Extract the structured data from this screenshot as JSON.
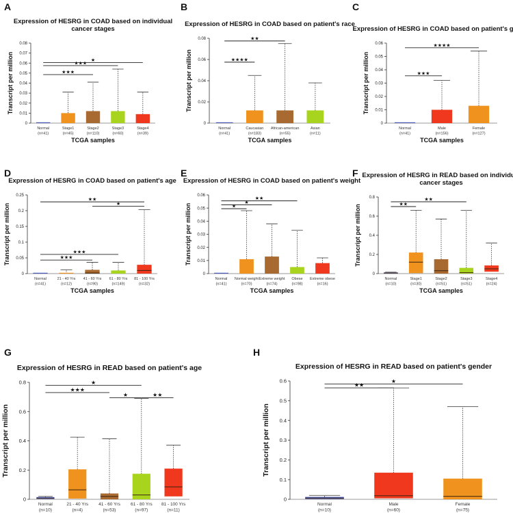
{
  "chart_data": [
    {
      "panel": "A",
      "type": "box",
      "title": [
        "Expression of HESRG in COAD based on individual",
        "cancer stages"
      ],
      "xlabel": "TCGA samples",
      "ylabel": "Transcript per million",
      "ylim": [
        0,
        0.08
      ],
      "yticks": [
        "0",
        "0.01",
        "0.02",
        "0.03",
        "0.04",
        "0.05",
        "0.06",
        "0.07",
        "0.08"
      ],
      "categories": [
        "Normal",
        "Stage1",
        "Stage2",
        "Stage3",
        "Stage4"
      ],
      "ns": [
        "(n=41)",
        "(n=45)",
        "(n=110)",
        "(n=60)",
        "(n=39)"
      ],
      "colors": [
        "#4a58b8",
        "#f0921e",
        "#a86a30",
        "#a8d41e",
        "#f0381e"
      ],
      "boxes": [
        {
          "min": 0,
          "q1": 0,
          "median": 0,
          "q3": 0,
          "max": 0
        },
        {
          "min": 0,
          "q1": 0,
          "median": 0,
          "q3": 0.01,
          "max": 0.031
        },
        {
          "min": 0,
          "q1": 0,
          "median": 0,
          "q3": 0.012,
          "max": 0.041
        },
        {
          "min": 0,
          "q1": 0,
          "median": 0,
          "q3": 0.012,
          "max": 0.054
        },
        {
          "min": 0,
          "q1": 0,
          "median": 0,
          "q3": 0.009,
          "max": 0.031
        }
      ],
      "sig": [
        {
          "from": 0,
          "to": 4,
          "y": 0.0605,
          "label": "★"
        },
        {
          "from": 0,
          "to": 3,
          "y": 0.0575,
          "label": "★★★"
        },
        {
          "from": 0,
          "to": 2,
          "y": 0.0485,
          "label": "★★★"
        }
      ]
    },
    {
      "panel": "B",
      "type": "box",
      "title": [
        "Expression of HESRG in COAD based on patient's race"
      ],
      "xlabel": "TCGA samples",
      "ylabel": "Transcript per million",
      "ylim": [
        0,
        0.08
      ],
      "yticks": [
        "0",
        "0.02",
        "0.04",
        "0.06",
        "0.08"
      ],
      "categories": [
        "Normal",
        "Caucasian",
        "African-american",
        "Asian"
      ],
      "ns": [
        "(n=41)",
        "(n=183)",
        "(n=55)",
        "(n=11)"
      ],
      "colors": [
        "#4a58b8",
        "#f0921e",
        "#a86a30",
        "#a8d41e"
      ],
      "boxes": [
        {
          "min": 0,
          "q1": 0,
          "median": 0,
          "q3": 0,
          "max": 0
        },
        {
          "min": 0,
          "q1": 0,
          "median": 0,
          "q3": 0.012,
          "max": 0.045
        },
        {
          "min": 0,
          "q1": 0,
          "median": 0,
          "q3": 0.012,
          "max": 0.075
        },
        {
          "min": 0,
          "q1": 0,
          "median": 0,
          "q3": 0.012,
          "max": 0.038
        }
      ],
      "sig": [
        {
          "from": 0,
          "to": 2,
          "y": 0.0775,
          "label": "★★"
        },
        {
          "from": 0,
          "to": 1,
          "y": 0.0575,
          "label": "★★★★"
        }
      ]
    },
    {
      "panel": "C",
      "type": "box",
      "title": [
        "Expression of HESRG in COAD based on patient's gender"
      ],
      "xlabel": "TCGA samples",
      "ylabel": "Transcript per million",
      "ylim": [
        0,
        0.06
      ],
      "yticks": [
        "0",
        "0.01",
        "0.02",
        "0.03",
        "0.04",
        "0.05",
        "0.06"
      ],
      "categories": [
        "Normal",
        "Male",
        "Female"
      ],
      "ns": [
        "(n=41)",
        "(n=156)",
        "(n=127)"
      ],
      "colors": [
        "#4a58b8",
        "#f0381e",
        "#f0921e"
      ],
      "boxes": [
        {
          "min": 0,
          "q1": 0,
          "median": 0,
          "q3": 0,
          "max": 0
        },
        {
          "min": 0,
          "q1": 0,
          "median": 0,
          "q3": 0.01,
          "max": 0.032
        },
        {
          "min": 0,
          "q1": 0,
          "median": 0,
          "q3": 0.013,
          "max": 0.054
        }
      ],
      "sig": [
        {
          "from": 0,
          "to": 2,
          "y": 0.0565,
          "label": "★★★★"
        },
        {
          "from": 0,
          "to": 1,
          "y": 0.0355,
          "label": "★★★"
        }
      ]
    },
    {
      "panel": "D",
      "type": "box",
      "title": [
        "Expression of HESRG in COAD based on patient's age"
      ],
      "xlabel": "TCGA samples",
      "ylabel": "Transcript per million",
      "ylim": [
        0,
        0.25
      ],
      "yticks": [
        "0",
        "0.05",
        "0.1",
        "0.15",
        "0.2",
        "0.25"
      ],
      "categories": [
        "Normal",
        "21 - 40 Yrs",
        "41 - 60 Yrs",
        "61 - 80 Yrs",
        "81 - 100 Yrs"
      ],
      "ns": [
        "(n=41)",
        "(n=12)",
        "(n=90)",
        "(n=149)",
        "(n=32)"
      ],
      "colors": [
        "#4a58b8",
        "#f0921e",
        "#a86a30",
        "#a8d41e",
        "#f0381e"
      ],
      "boxes": [
        {
          "min": 0,
          "q1": 0,
          "median": 0,
          "q3": 0,
          "max": 0
        },
        {
          "min": 0,
          "q1": 0,
          "median": 0,
          "q3": 0,
          "max": 0.012
        },
        {
          "min": 0,
          "q1": 0,
          "median": 0.002,
          "q3": 0.012,
          "max": 0.036
        },
        {
          "min": 0,
          "q1": 0,
          "median": 0,
          "q3": 0.01,
          "max": 0.036
        },
        {
          "min": 0,
          "q1": 0,
          "median": 0.01,
          "q3": 0.028,
          "max": 0.203
        }
      ],
      "sig": [
        {
          "from": 0,
          "to": 4,
          "y": 0.228,
          "label": "★★"
        },
        {
          "from": 2,
          "to": 4,
          "y": 0.214,
          "label": "★"
        },
        {
          "from": 0,
          "to": 3,
          "y": 0.061,
          "label": "★★★"
        },
        {
          "from": 0,
          "to": 2,
          "y": 0.043,
          "label": "★★★"
        }
      ]
    },
    {
      "panel": "E",
      "type": "box",
      "title": [
        "Expression of HESRG in COAD based on patient's weight"
      ],
      "xlabel": "TCGA samples",
      "ylabel": "Transcript per million",
      "ylim": [
        0,
        0.06
      ],
      "yticks": [
        "0",
        "0.01",
        "0.02",
        "0.03",
        "0.04",
        "0.05",
        "0.06"
      ],
      "categories": [
        "Normal",
        "Normal weight",
        "Extreme weight",
        "Obese",
        "Extreme obese"
      ],
      "ns": [
        "(n=41)",
        "(n=70)",
        "(n=74)",
        "(n=98)",
        "(n=16)"
      ],
      "colors": [
        "#4a58b8",
        "#f0921e",
        "#a86a30",
        "#a8d41e",
        "#f0381e"
      ],
      "boxes": [
        {
          "min": 0,
          "q1": 0,
          "median": 0,
          "q3": 0,
          "max": 0
        },
        {
          "min": 0,
          "q1": 0,
          "median": 0,
          "q3": 0.011,
          "max": 0.048
        },
        {
          "min": 0,
          "q1": 0,
          "median": 0,
          "q3": 0.013,
          "max": 0.038
        },
        {
          "min": 0,
          "q1": 0,
          "median": 0,
          "q3": 0.005,
          "max": 0.033
        },
        {
          "min": 0,
          "q1": 0,
          "median": 0,
          "q3": 0.008,
          "max": 0.012
        }
      ],
      "sig": [
        {
          "from": 0,
          "to": 3,
          "y": 0.0555,
          "label": "★★"
        },
        {
          "from": 0,
          "to": 2,
          "y": 0.0525,
          "label": "★"
        },
        {
          "from": 0,
          "to": 1,
          "y": 0.0495,
          "label": "★"
        }
      ]
    },
    {
      "panel": "F",
      "type": "box",
      "title": [
        "Expression of HESRG in READ based on individual",
        "cancer stages"
      ],
      "xlabel": "TCGA samples",
      "ylabel": "Transcript per million",
      "ylim": [
        0,
        0.8
      ],
      "yticks": [
        "0",
        "0.2",
        "0.4",
        "0.6",
        "0.8"
      ],
      "categories": [
        "Normal",
        "Stage1",
        "Stage2",
        "Stage3",
        "Stage4"
      ],
      "ns": [
        "(n=10)",
        "(n=30)",
        "(n=51)",
        "(n=51)",
        "(n=24)"
      ],
      "colors": [
        "#4a58b8",
        "#f0921e",
        "#a86a30",
        "#a8d41e",
        "#f0381e"
      ],
      "boxes": [
        {
          "min": 0,
          "q1": 0.002,
          "median": 0.006,
          "q3": 0.012,
          "max": 0.015
        },
        {
          "min": 0,
          "q1": 0.005,
          "median": 0.12,
          "q3": 0.22,
          "max": 0.66
        },
        {
          "min": 0,
          "q1": 0,
          "median": 0.03,
          "q3": 0.15,
          "max": 0.57
        },
        {
          "min": 0,
          "q1": 0,
          "median": 0.01,
          "q3": 0.06,
          "max": 0.66
        },
        {
          "min": 0,
          "q1": 0.02,
          "median": 0.05,
          "q3": 0.085,
          "max": 0.32
        }
      ],
      "sig": [
        {
          "from": 0,
          "to": 3,
          "y": 0.75,
          "label": "★★"
        },
        {
          "from": 0,
          "to": 1,
          "y": 0.7,
          "label": "★★"
        }
      ]
    },
    {
      "panel": "G",
      "type": "box",
      "title": [
        "Expression of HESRG in READ based on patient's age"
      ],
      "xlabel": "TCGA samples",
      "ylabel": "Transcript per million",
      "ylim": [
        0,
        0.8
      ],
      "yticks": [
        "0",
        "0.2",
        "0.4",
        "0.6",
        "0.8"
      ],
      "categories": [
        "Normal",
        "21 - 40 Yrs",
        "41 - 60 Yrs",
        "61 - 80 Yrs",
        "81 - 100 Yrs"
      ],
      "ns": [
        "(n=10)",
        "(n=4)",
        "(n=53)",
        "(n=97)",
        "(n=11)"
      ],
      "colors": [
        "#4a58b8",
        "#f0921e",
        "#a86a30",
        "#a8d41e",
        "#f0381e"
      ],
      "boxes": [
        {
          "min": 0,
          "q1": 0.003,
          "median": 0.008,
          "q3": 0.015,
          "max": 0.02
        },
        {
          "min": 0,
          "q1": 0.005,
          "median": 0.065,
          "q3": 0.205,
          "max": 0.425
        },
        {
          "min": 0,
          "q1": 0,
          "median": 0.02,
          "q3": 0.04,
          "max": 0.415
        },
        {
          "min": 0,
          "q1": 0,
          "median": 0.03,
          "q3": 0.175,
          "max": 0.69
        },
        {
          "min": 0,
          "q1": 0.02,
          "median": 0.085,
          "q3": 0.21,
          "max": 0.37
        }
      ],
      "sig": [
        {
          "from": 0,
          "to": 3,
          "y": 0.78,
          "label": "★"
        },
        {
          "from": 0,
          "to": 2,
          "y": 0.73,
          "label": "★★★"
        },
        {
          "from": 2,
          "to": 3,
          "y": 0.695,
          "label": "★"
        },
        {
          "from": 3,
          "to": 4,
          "y": 0.695,
          "label": "★★"
        }
      ]
    },
    {
      "panel": "H",
      "type": "box",
      "title": [
        "Expression of HESRG in READ based on patient's gender"
      ],
      "xlabel": "TCGA samples",
      "ylabel": "Transcript per million",
      "ylim": [
        0,
        0.6
      ],
      "yticks": [
        "0",
        "0.1",
        "0.2",
        "0.3",
        "0.4",
        "0.5",
        "0.6"
      ],
      "categories": [
        "Normal",
        "Male",
        "Female"
      ],
      "ns": [
        "(n=10)",
        "(n=60)",
        "(n=75)"
      ],
      "colors": [
        "#4a58b8",
        "#f0381e",
        "#f0921e"
      ],
      "boxes": [
        {
          "min": 0,
          "q1": 0.002,
          "median": 0.006,
          "q3": 0.012,
          "max": 0.02
        },
        {
          "min": 0,
          "q1": 0.005,
          "median": 0.018,
          "q3": 0.135,
          "max": 0.565
        },
        {
          "min": 0,
          "q1": 0,
          "median": 0.015,
          "q3": 0.105,
          "max": 0.47
        }
      ],
      "sig": [
        {
          "from": 0,
          "to": 2,
          "y": 0.585,
          "label": "★"
        },
        {
          "from": 0,
          "to": 1,
          "y": 0.565,
          "label": "★★"
        }
      ]
    }
  ]
}
